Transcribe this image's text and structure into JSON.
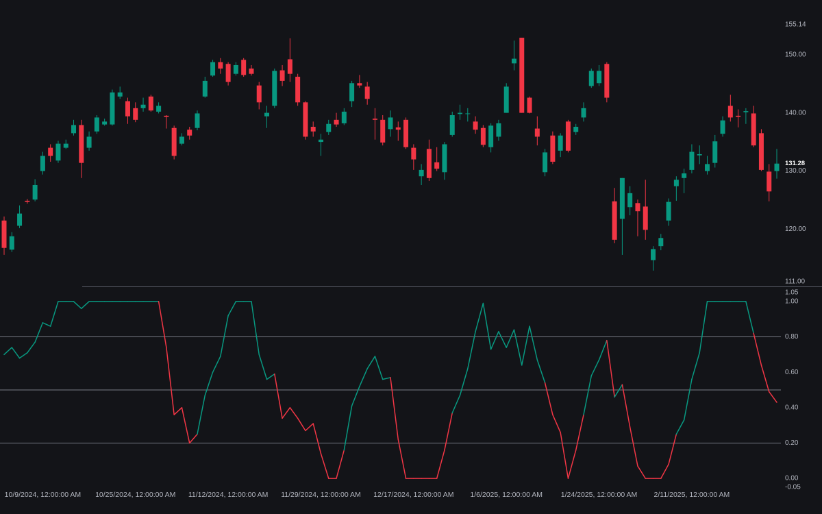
{
  "chart_data": [
    {
      "type": "candlestick",
      "up_color": "#089981",
      "down_color": "#f23645",
      "categories": [
        null,
        null,
        null,
        null,
        null,
        "10/9/2024, 12:00:00 AM",
        null,
        null,
        null,
        null,
        null,
        null,
        null,
        null,
        null,
        null,
        null,
        "10/25/2024, 12:00:00 AM",
        null,
        null,
        null,
        null,
        null,
        null,
        null,
        null,
        null,
        null,
        null,
        "11/12/2024, 12:00:00 AM",
        null,
        null,
        null,
        null,
        null,
        null,
        null,
        null,
        null,
        null,
        null,
        "11/29/2024, 12:00:00 AM",
        null,
        null,
        null,
        null,
        null,
        null,
        null,
        null,
        null,
        null,
        null,
        "12/17/2024, 12:00:00 AM",
        null,
        null,
        null,
        null,
        null,
        null,
        null,
        null,
        null,
        null,
        null,
        "1/6/2025, 12:00:00 AM",
        null,
        null,
        null,
        null,
        null,
        null,
        null,
        null,
        null,
        null,
        null,
        "1/24/2025, 12:00:00 AM",
        null,
        null,
        null,
        null,
        null,
        null,
        null,
        null,
        null,
        null,
        null,
        "2/11/2025, 12:00:00 AM",
        null,
        null,
        null,
        null,
        null,
        null,
        null,
        null,
        null,
        null,
        null
      ],
      "open": [
        121.5,
        116.5,
        120.6,
        124.9,
        125.1,
        130.0,
        134.0,
        131.8,
        134.0,
        136.5,
        137.9,
        134.0,
        136.8,
        138.0,
        138.0,
        142.8,
        142.0,
        140.8,
        140.8,
        142.8,
        140.2,
        139.5,
        137.4,
        134.7,
        137.1,
        137.4,
        142.8,
        146.4,
        148.7,
        148.4,
        146.7,
        149.1,
        147.6,
        144.7,
        139.4,
        141.2,
        147.3,
        149.2,
        146.2,
        141.8,
        137.6,
        135.0,
        136.7,
        138.8,
        138.2,
        142.0,
        145.1,
        144.5,
        139.0,
        138.8,
        137.2,
        137.5,
        138.8,
        134.0,
        129.1,
        133.8,
        131.5,
        129.8,
        136.2,
        139.8,
        139.8,
        138.5,
        137.4,
        134.1,
        135.9,
        140.0,
        148.5,
        152.9,
        142.6,
        137.3,
        129.8,
        136.1,
        133.5,
        138.5,
        136.7,
        139.2,
        144.6,
        145.1,
        148.4,
        124.8,
        121.8,
        123.8,
        124.5,
        123.9,
        114.7,
        117.1,
        121.5,
        127.4,
        128.8,
        130.2,
        132.7,
        130.0,
        131.4,
        136.4,
        141.2,
        139.5,
        140.1,
        139.9,
        136.5,
        129.9,
        130.0
      ],
      "high": [
        122.2,
        119.5,
        124.1,
        125.2,
        128.6,
        133.3,
        134.6,
        135.2,
        135.4,
        138.8,
        138.8,
        136.8,
        139.6,
        139.0,
        144.0,
        144.5,
        142.6,
        141.8,
        142.6,
        143.1,
        141.8,
        139.6,
        137.8,
        136.5,
        137.6,
        140.4,
        146.2,
        149.1,
        149.4,
        148.7,
        148.7,
        149.4,
        148.2,
        145.3,
        141.2,
        147.6,
        148.2,
        152.8,
        146.7,
        142.0,
        138.5,
        136.4,
        138.8,
        140.0,
        140.8,
        145.5,
        146.5,
        145.3,
        140.8,
        139.6,
        140.4,
        138.5,
        139.2,
        134.6,
        131.2,
        135.4,
        134.1,
        135.0,
        140.2,
        141.4,
        140.8,
        139.4,
        137.9,
        138.2,
        138.8,
        145.1,
        152.4,
        152.9,
        142.8,
        139.4,
        133.8,
        136.8,
        136.5,
        138.8,
        138.1,
        141.8,
        147.6,
        148.2,
        148.7,
        127.1,
        128.8,
        127.4,
        125.1,
        128.5,
        117.1,
        119.2,
        125.3,
        129.1,
        130.4,
        134.6,
        134.4,
        132.6,
        136.2,
        139.4,
        143.1,
        140.6,
        140.8,
        141.2,
        137.2,
        131.2,
        133.8
      ],
      "low": [
        115.6,
        116.1,
        120.2,
        124.4,
        124.8,
        129.4,
        131.6,
        131.4,
        133.8,
        136.1,
        128.8,
        133.5,
        136.4,
        137.8,
        137.8,
        142.4,
        138.1,
        138.4,
        140.2,
        140.2,
        139.9,
        137.3,
        132.0,
        134.4,
        135.4,
        137.0,
        142.6,
        146.2,
        146.7,
        144.7,
        146.4,
        146.2,
        146.4,
        140.6,
        137.4,
        140.8,
        144.6,
        145.3,
        141.2,
        135.4,
        135.9,
        132.6,
        136.2,
        137.6,
        137.9,
        141.0,
        144.3,
        141.4,
        135.4,
        134.4,
        135.9,
        135.2,
        133.8,
        130.2,
        127.6,
        128.3,
        130.0,
        128.5,
        135.9,
        138.8,
        138.5,
        136.4,
        134.1,
        133.2,
        135.2,
        140.0,
        147.3,
        140.0,
        139.9,
        134.4,
        129.1,
        131.2,
        132.4,
        133.2,
        136.2,
        138.5,
        144.3,
        144.6,
        141.8,
        117.6,
        115.6,
        122.4,
        118.8,
        118.2,
        112.9,
        116.4,
        120.6,
        124.9,
        126.2,
        129.6,
        131.2,
        129.4,
        130.6,
        135.9,
        138.5,
        137.5,
        138.1,
        134.1,
        130.0,
        124.8,
        128.7
      ],
      "close": [
        116.8,
        118.8,
        122.7,
        124.7,
        127.6,
        132.6,
        132.6,
        134.7,
        134.7,
        137.9,
        131.4,
        135.9,
        139.2,
        138.5,
        143.5,
        143.5,
        139.4,
        138.8,
        141.4,
        140.4,
        141.2,
        139.3,
        132.6,
        135.9,
        136.1,
        139.9,
        145.5,
        148.7,
        147.6,
        145.3,
        148.2,
        146.5,
        146.7,
        141.8,
        140.0,
        147.2,
        145.5,
        146.7,
        141.8,
        135.9,
        136.8,
        135.4,
        138.1,
        138.0,
        140.2,
        145.1,
        144.7,
        142.4,
        138.8,
        134.9,
        139.2,
        137.1,
        134.1,
        132.0,
        130.2,
        128.8,
        130.4,
        134.6,
        139.6,
        140.0,
        139.9,
        137.1,
        134.5,
        137.8,
        138.2,
        144.5,
        149.3,
        140.0,
        140.0,
        135.9,
        133.2,
        131.6,
        136.1,
        133.5,
        137.6,
        140.8,
        147.2,
        147.2,
        142.6,
        118.2,
        128.8,
        126.2,
        123.1,
        119.9,
        116.6,
        118.5,
        124.7,
        128.5,
        129.6,
        133.3,
        132.9,
        131.2,
        135.1,
        138.7,
        139.2,
        139.3,
        140.3,
        134.4,
        130.2,
        126.5,
        131.28
      ],
      "ylim": [
        111,
        155.14
      ],
      "yticks": [
        {
          "value": 111,
          "label": "111.00"
        },
        {
          "value": 120,
          "label": "120.00"
        },
        {
          "value": 130,
          "label": "130.00"
        },
        {
          "value": 140,
          "label": "140.00"
        },
        {
          "value": 150,
          "label": "150.00"
        },
        {
          "value": 155.14,
          "label": "155.14"
        }
      ]
    },
    {
      "type": "line",
      "series": [
        {
          "values": [
            0.7,
            0.74,
            0.68,
            0.71,
            0.77,
            0.88,
            0.86,
            1.0,
            1.0,
            1.0,
            0.96,
            1.0,
            1.0,
            1.0,
            1.0,
            1.0,
            1.0,
            1.0,
            1.0,
            1.0,
            1.0,
            0.74,
            0.36,
            0.4,
            0.2,
            0.25,
            0.47,
            0.6,
            0.69,
            0.92,
            1.0,
            1.0,
            1.0,
            0.7,
            0.56,
            0.59,
            0.34,
            0.4,
            0.34,
            0.27,
            0.31,
            0.14,
            0.0,
            0.0,
            0.16,
            0.41,
            0.52,
            0.62,
            0.69,
            0.56,
            0.57,
            0.22,
            0.0,
            0.0,
            0.0,
            0.0,
            0.0,
            0.16,
            0.37,
            0.47,
            0.62,
            0.83,
            0.99,
            0.73,
            0.83,
            0.74,
            0.84,
            0.64,
            0.86,
            0.67,
            0.54,
            0.36,
            0.26,
            0.0,
            0.16,
            0.36,
            0.58,
            0.67,
            0.78,
            0.46,
            0.53,
            0.29,
            0.07,
            0.0,
            0.0,
            0.0,
            0.08,
            0.25,
            0.33,
            0.56,
            0.71,
            1.0,
            1.0,
            1.0,
            1.0,
            1.0,
            1.0,
            0.82,
            0.64,
            0.49,
            0.43
          ],
          "colors": [
            "#089981",
            "#089981",
            "#089981",
            "#089981",
            "#089981",
            "#089981",
            "#089981",
            "#089981",
            "#089981",
            "#089981",
            "#089981",
            "#089981",
            "#089981",
            "#089981",
            "#089981",
            "#089981",
            "#089981",
            "#089981",
            "#089981",
            "#089981",
            "#089981",
            "#f23645",
            "#f23645",
            "#f23645",
            "#f23645",
            "#f23645",
            "#089981",
            "#089981",
            "#089981",
            "#089981",
            "#089981",
            "#089981",
            "#089981",
            "#089981",
            "#089981",
            "#089981",
            "#f23645",
            "#f23645",
            "#f23645",
            "#f23645",
            "#f23645",
            "#f23645",
            "#f23645",
            "#f23645",
            "#f23645",
            "#089981",
            "#089981",
            "#089981",
            "#089981",
            "#089981",
            "#089981",
            "#f23645",
            "#f23645",
            "#f23645",
            "#f23645",
            "#f23645",
            "#f23645",
            "#f23645",
            "#f23645",
            "#089981",
            "#089981",
            "#089981",
            "#089981",
            "#089981",
            "#089981",
            "#089981",
            "#089981",
            "#089981",
            "#089981",
            "#089981",
            "#089981",
            "#f23645",
            "#f23645",
            "#f23645",
            "#f23645",
            "#f23645",
            "#089981",
            "#089981",
            "#089981",
            "#f23645",
            "#089981",
            "#f23645",
            "#f23645",
            "#f23645",
            "#f23645",
            "#f23645",
            "#f23645",
            "#f23645",
            "#089981",
            "#089981",
            "#089981",
            "#089981",
            "#089981",
            "#089981",
            "#089981",
            "#089981",
            "#089981",
            "#089981",
            "#f23645",
            "#f23645",
            "#f23645"
          ]
        }
      ],
      "levels": [
        0.2,
        0.5,
        0.8
      ],
      "ylim": [
        -0.05,
        1.05
      ],
      "yticks": [
        {
          "value": -0.05,
          "label": "-0.05"
        },
        {
          "value": 0,
          "label": "0.00"
        },
        {
          "value": 0.2,
          "label": "0.20"
        },
        {
          "value": 0.4,
          "label": "0.40"
        },
        {
          "value": 0.6,
          "label": "0.60"
        },
        {
          "value": 0.8,
          "label": "0.80"
        },
        {
          "value": 1,
          "label": "1.00"
        },
        {
          "value": 1.05,
          "label": "1.05"
        }
      ]
    }
  ]
}
